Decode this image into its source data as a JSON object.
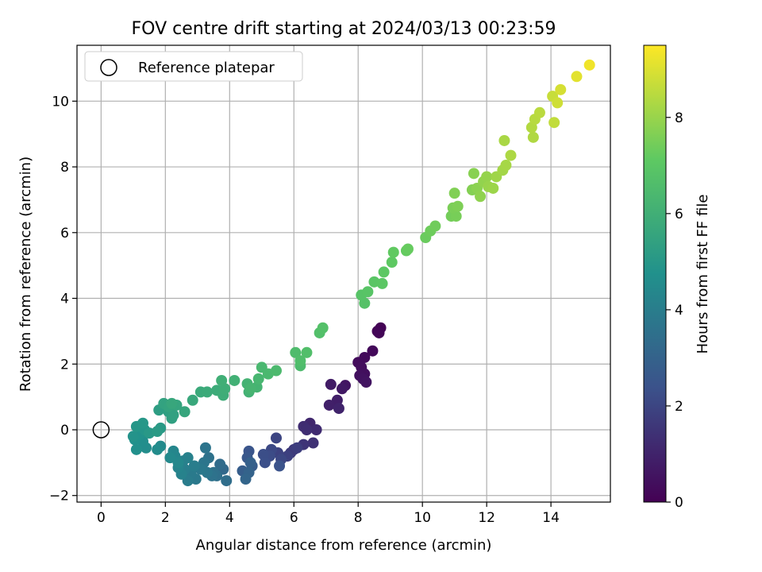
{
  "chart_data": {
    "type": "scatter",
    "title": "FOV centre drift starting at 2024/03/13 00:23:59",
    "xlabel": "Angular distance from reference (arcmin)",
    "ylabel": "Rotation from reference (arcmin)",
    "xlim": [
      -0.75,
      15.85
    ],
    "ylim": [
      -2.2,
      11.7
    ],
    "x_ticks": [
      0,
      2,
      4,
      6,
      8,
      10,
      12,
      14
    ],
    "y_ticks": [
      -2,
      0,
      2,
      4,
      6,
      8,
      10
    ],
    "grid": true,
    "legend": {
      "placement": "top-left",
      "entries": [
        "Reference platepar"
      ]
    },
    "reference_point": {
      "x": 0,
      "y": 0
    },
    "colorbar": {
      "label": "Hours from first FF file",
      "range": [
        0,
        9.5
      ],
      "ticks": [
        0,
        2,
        4,
        6,
        8
      ],
      "colormap": "viridis"
    },
    "points": [
      {
        "x": 8.7,
        "y": 3.1,
        "h": 0.05
      },
      {
        "x": 8.6,
        "y": 3.0,
        "h": 0.1
      },
      {
        "x": 8.65,
        "y": 2.95,
        "h": 0.15
      },
      {
        "x": 8.45,
        "y": 2.4,
        "h": 0.2
      },
      {
        "x": 8.2,
        "y": 2.2,
        "h": 0.25
      },
      {
        "x": 8.0,
        "y": 2.05,
        "h": 0.3
      },
      {
        "x": 8.1,
        "y": 1.9,
        "h": 0.35
      },
      {
        "x": 8.2,
        "y": 1.7,
        "h": 0.4
      },
      {
        "x": 8.05,
        "y": 1.65,
        "h": 0.45
      },
      {
        "x": 8.15,
        "y": 1.55,
        "h": 0.5
      },
      {
        "x": 8.25,
        "y": 1.45,
        "h": 0.55
      },
      {
        "x": 7.6,
        "y": 1.35,
        "h": 0.6
      },
      {
        "x": 7.5,
        "y": 1.25,
        "h": 0.7
      },
      {
        "x": 7.15,
        "y": 1.38,
        "h": 0.75
      },
      {
        "x": 7.35,
        "y": 0.9,
        "h": 0.85
      },
      {
        "x": 7.1,
        "y": 0.75,
        "h": 0.9
      },
      {
        "x": 7.4,
        "y": 0.65,
        "h": 1.0
      },
      {
        "x": 6.5,
        "y": 0.2,
        "h": 1.1
      },
      {
        "x": 6.7,
        "y": 0.0,
        "h": 1.2
      },
      {
        "x": 6.3,
        "y": 0.1,
        "h": 1.25
      },
      {
        "x": 6.4,
        "y": 0.0,
        "h": 1.3
      },
      {
        "x": 6.6,
        "y": -0.4,
        "h": 1.4
      },
      {
        "x": 6.3,
        "y": -0.45,
        "h": 1.5
      },
      {
        "x": 6.0,
        "y": -0.6,
        "h": 1.6
      },
      {
        "x": 5.9,
        "y": -0.7,
        "h": 1.7
      },
      {
        "x": 6.1,
        "y": -0.55,
        "h": 1.75
      },
      {
        "x": 5.8,
        "y": -0.8,
        "h": 1.85
      },
      {
        "x": 5.5,
        "y": -0.7,
        "h": 1.9
      },
      {
        "x": 5.45,
        "y": -0.25,
        "h": 2.0
      },
      {
        "x": 5.6,
        "y": -0.9,
        "h": 2.05
      },
      {
        "x": 5.3,
        "y": -0.6,
        "h": 2.1
      },
      {
        "x": 5.25,
        "y": -0.8,
        "h": 2.2
      },
      {
        "x": 5.05,
        "y": -0.75,
        "h": 2.25
      },
      {
        "x": 5.1,
        "y": -1.0,
        "h": 2.3
      },
      {
        "x": 5.55,
        "y": -1.1,
        "h": 2.4
      },
      {
        "x": 4.6,
        "y": -0.65,
        "h": 2.5
      },
      {
        "x": 4.55,
        "y": -0.85,
        "h": 2.6
      },
      {
        "x": 4.7,
        "y": -1.1,
        "h": 2.7
      },
      {
        "x": 4.4,
        "y": -1.25,
        "h": 2.8
      },
      {
        "x": 4.65,
        "y": -1.0,
        "h": 2.9
      },
      {
        "x": 4.6,
        "y": -1.3,
        "h": 3.0
      },
      {
        "x": 4.5,
        "y": -1.5,
        "h": 3.1
      },
      {
        "x": 3.8,
        "y": -1.2,
        "h": 3.2
      },
      {
        "x": 3.7,
        "y": -1.05,
        "h": 3.3
      },
      {
        "x": 3.9,
        "y": -1.55,
        "h": 3.4
      },
      {
        "x": 3.6,
        "y": -1.4,
        "h": 3.45
      },
      {
        "x": 3.5,
        "y": -1.3,
        "h": 3.5
      },
      {
        "x": 3.35,
        "y": -0.85,
        "h": 3.55
      },
      {
        "x": 3.45,
        "y": -1.4,
        "h": 3.6
      },
      {
        "x": 3.25,
        "y": -0.55,
        "h": 3.65
      },
      {
        "x": 3.2,
        "y": -1.0,
        "h": 3.7
      },
      {
        "x": 3.3,
        "y": -1.3,
        "h": 3.75
      },
      {
        "x": 3.1,
        "y": -1.2,
        "h": 3.8
      },
      {
        "x": 2.95,
        "y": -1.5,
        "h": 3.85
      },
      {
        "x": 2.8,
        "y": -1.35,
        "h": 3.9
      },
      {
        "x": 2.7,
        "y": -1.55,
        "h": 3.95
      },
      {
        "x": 2.9,
        "y": -1.1,
        "h": 4.0
      },
      {
        "x": 2.6,
        "y": -1.2,
        "h": 4.05
      },
      {
        "x": 2.55,
        "y": -0.95,
        "h": 4.1
      },
      {
        "x": 2.7,
        "y": -0.85,
        "h": 4.15
      },
      {
        "x": 2.5,
        "y": -1.35,
        "h": 4.2
      },
      {
        "x": 2.4,
        "y": -1.15,
        "h": 4.25
      },
      {
        "x": 2.3,
        "y": -0.8,
        "h": 4.3
      },
      {
        "x": 2.25,
        "y": -0.65,
        "h": 4.35
      },
      {
        "x": 2.4,
        "y": -1.0,
        "h": 4.4
      },
      {
        "x": 2.15,
        "y": -0.85,
        "h": 4.45
      },
      {
        "x": 1.85,
        "y": -0.5,
        "h": 4.5
      },
      {
        "x": 1.75,
        "y": -0.6,
        "h": 4.55
      },
      {
        "x": 1.4,
        "y": -0.55,
        "h": 4.6
      },
      {
        "x": 1.3,
        "y": -0.35,
        "h": 4.65
      },
      {
        "x": 1.1,
        "y": -0.6,
        "h": 4.7
      },
      {
        "x": 1.05,
        "y": -0.3,
        "h": 4.75
      },
      {
        "x": 1.2,
        "y": -0.15,
        "h": 4.8
      },
      {
        "x": 1.0,
        "y": -0.2,
        "h": 4.85
      },
      {
        "x": 1.35,
        "y": 0.0,
        "h": 4.9
      },
      {
        "x": 1.1,
        "y": 0.1,
        "h": 4.95
      },
      {
        "x": 1.3,
        "y": 0.2,
        "h": 5.0
      },
      {
        "x": 1.5,
        "y": -0.1,
        "h": 5.05
      },
      {
        "x": 1.85,
        "y": 0.05,
        "h": 5.1
      },
      {
        "x": 1.75,
        "y": -0.05,
        "h": 5.15
      },
      {
        "x": 1.8,
        "y": 0.6,
        "h": 5.25
      },
      {
        "x": 2.1,
        "y": 0.55,
        "h": 5.3
      },
      {
        "x": 2.2,
        "y": 0.35,
        "h": 5.35
      },
      {
        "x": 2.25,
        "y": 0.45,
        "h": 5.4
      },
      {
        "x": 1.95,
        "y": 0.8,
        "h": 5.45
      },
      {
        "x": 2.1,
        "y": 0.7,
        "h": 5.5
      },
      {
        "x": 2.35,
        "y": 0.75,
        "h": 5.55
      },
      {
        "x": 2.6,
        "y": 0.55,
        "h": 5.6
      },
      {
        "x": 2.2,
        "y": 0.8,
        "h": 5.65
      },
      {
        "x": 2.85,
        "y": 0.9,
        "h": 5.7
      },
      {
        "x": 3.1,
        "y": 1.15,
        "h": 5.75
      },
      {
        "x": 3.3,
        "y": 1.15,
        "h": 5.8
      },
      {
        "x": 3.6,
        "y": 1.2,
        "h": 5.85
      },
      {
        "x": 3.8,
        "y": 1.05,
        "h": 5.9
      },
      {
        "x": 3.85,
        "y": 1.25,
        "h": 5.95
      },
      {
        "x": 3.75,
        "y": 1.5,
        "h": 6.0
      },
      {
        "x": 4.15,
        "y": 1.5,
        "h": 6.05
      },
      {
        "x": 4.6,
        "y": 1.15,
        "h": 6.1
      },
      {
        "x": 4.55,
        "y": 1.4,
        "h": 6.15
      },
      {
        "x": 4.85,
        "y": 1.3,
        "h": 6.2
      },
      {
        "x": 4.65,
        "y": 1.25,
        "h": 6.25
      },
      {
        "x": 4.9,
        "y": 1.55,
        "h": 6.3
      },
      {
        "x": 5.0,
        "y": 1.9,
        "h": 6.35
      },
      {
        "x": 5.2,
        "y": 1.7,
        "h": 6.4
      },
      {
        "x": 5.45,
        "y": 1.8,
        "h": 6.45
      },
      {
        "x": 6.2,
        "y": 1.95,
        "h": 6.5
      },
      {
        "x": 6.05,
        "y": 2.35,
        "h": 6.55
      },
      {
        "x": 6.2,
        "y": 2.1,
        "h": 6.6
      },
      {
        "x": 6.4,
        "y": 2.35,
        "h": 6.65
      },
      {
        "x": 6.8,
        "y": 2.95,
        "h": 6.7
      },
      {
        "x": 6.9,
        "y": 3.1,
        "h": 6.75
      },
      {
        "x": 8.2,
        "y": 3.85,
        "h": 6.8
      },
      {
        "x": 8.1,
        "y": 4.1,
        "h": 6.85
      },
      {
        "x": 8.3,
        "y": 4.2,
        "h": 6.9
      },
      {
        "x": 8.5,
        "y": 4.5,
        "h": 6.95
      },
      {
        "x": 8.75,
        "y": 4.45,
        "h": 7.0
      },
      {
        "x": 8.8,
        "y": 4.8,
        "h": 7.05
      },
      {
        "x": 9.05,
        "y": 5.1,
        "h": 7.1
      },
      {
        "x": 9.1,
        "y": 5.4,
        "h": 7.15
      },
      {
        "x": 9.5,
        "y": 5.45,
        "h": 7.2
      },
      {
        "x": 9.55,
        "y": 5.5,
        "h": 7.25
      },
      {
        "x": 10.1,
        "y": 5.85,
        "h": 7.3
      },
      {
        "x": 10.25,
        "y": 6.05,
        "h": 7.35
      },
      {
        "x": 10.4,
        "y": 6.2,
        "h": 7.4
      },
      {
        "x": 10.9,
        "y": 6.5,
        "h": 7.45
      },
      {
        "x": 11.05,
        "y": 6.5,
        "h": 7.5
      },
      {
        "x": 10.95,
        "y": 6.75,
        "h": 7.55
      },
      {
        "x": 11.1,
        "y": 6.8,
        "h": 7.6
      },
      {
        "x": 11.0,
        "y": 7.2,
        "h": 7.65
      },
      {
        "x": 11.55,
        "y": 7.3,
        "h": 7.7
      },
      {
        "x": 11.6,
        "y": 7.8,
        "h": 7.75
      },
      {
        "x": 11.7,
        "y": 7.35,
        "h": 7.8
      },
      {
        "x": 11.8,
        "y": 7.1,
        "h": 7.85
      },
      {
        "x": 11.9,
        "y": 7.55,
        "h": 7.9
      },
      {
        "x": 12.0,
        "y": 7.7,
        "h": 7.95
      },
      {
        "x": 12.05,
        "y": 7.4,
        "h": 8.0
      },
      {
        "x": 12.2,
        "y": 7.35,
        "h": 8.05
      },
      {
        "x": 12.3,
        "y": 7.7,
        "h": 8.1
      },
      {
        "x": 12.5,
        "y": 7.9,
        "h": 8.15
      },
      {
        "x": 12.6,
        "y": 8.05,
        "h": 8.2
      },
      {
        "x": 12.55,
        "y": 8.8,
        "h": 8.25
      },
      {
        "x": 12.75,
        "y": 8.35,
        "h": 8.3
      },
      {
        "x": 13.45,
        "y": 8.9,
        "h": 8.35
      },
      {
        "x": 13.4,
        "y": 9.2,
        "h": 8.4
      },
      {
        "x": 13.5,
        "y": 9.45,
        "h": 8.45
      },
      {
        "x": 13.65,
        "y": 9.65,
        "h": 8.5
      },
      {
        "x": 14.1,
        "y": 9.35,
        "h": 8.6
      },
      {
        "x": 14.05,
        "y": 10.15,
        "h": 8.7
      },
      {
        "x": 14.2,
        "y": 9.95,
        "h": 8.8
      },
      {
        "x": 14.3,
        "y": 10.35,
        "h": 8.9
      },
      {
        "x": 14.8,
        "y": 10.75,
        "h": 9.1
      },
      {
        "x": 15.2,
        "y": 11.1,
        "h": 9.3
      }
    ]
  }
}
